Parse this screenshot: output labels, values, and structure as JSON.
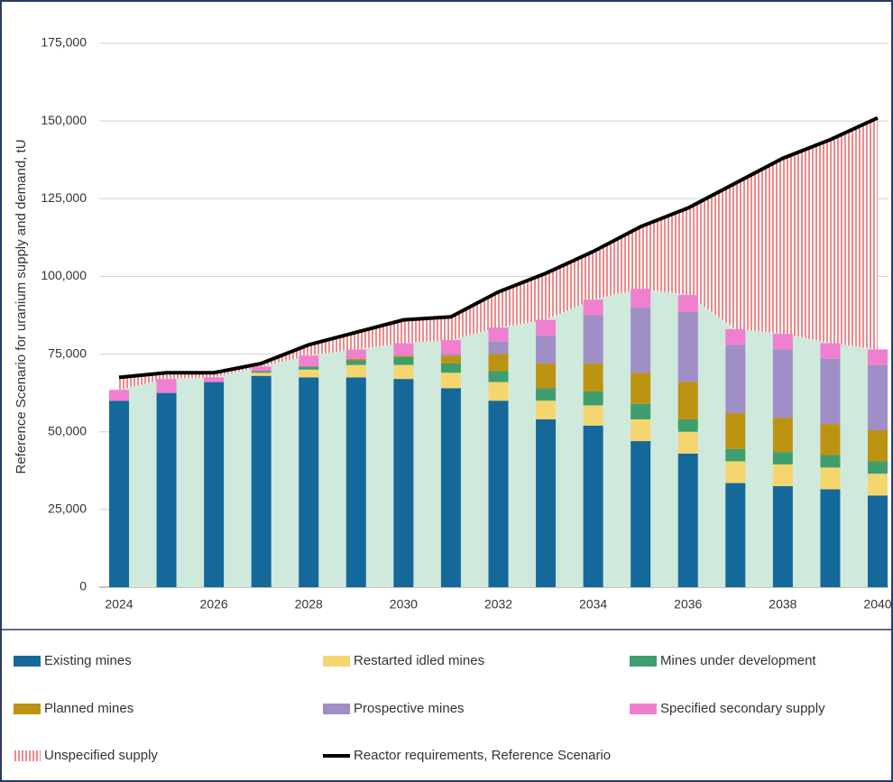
{
  "chart_data": {
    "type": "bar",
    "stacked": true,
    "y_label": "Reference Scenario for uranium supply and demand, tU",
    "categories": [
      "2024",
      null,
      "2026",
      null,
      "2028",
      null,
      "2030",
      null,
      "2032",
      null,
      "2034",
      null,
      "2036",
      null,
      "2038",
      null,
      "2040"
    ],
    "ylim": [
      0,
      175000
    ],
    "yticks": [
      0,
      {
        "value": 25000,
        "label": "25,000"
      },
      {
        "value": 50000,
        "label": "50,000"
      },
      {
        "value": 75000,
        "label": "75,000"
      },
      {
        "value": 100000,
        "label": "100,000"
      },
      {
        "value": 125000,
        "label": "125,000"
      },
      {
        "value": 150000,
        "label": "150,000"
      },
      {
        "value": 175000,
        "label": "175,000"
      }
    ],
    "grid": true,
    "legend": "bottom",
    "identified_supply_band_color": "#cfe9dd",
    "series": [
      {
        "name": "Existing mines",
        "color": "#15689a",
        "values": [
          60000,
          62500,
          66000,
          68000,
          67500,
          67500,
          67000,
          64000,
          60000,
          54000,
          52000,
          47000,
          43000,
          33500,
          32500,
          31500,
          29500
        ]
      },
      {
        "name": "Restarted idled mines",
        "color": "#f5d66e",
        "values": [
          0,
          0,
          0,
          1000,
          2500,
          4000,
          4500,
          5000,
          6000,
          6000,
          6500,
          7000,
          7000,
          7000,
          7000,
          7000,
          7000
        ]
      },
      {
        "name": "Mines under development",
        "color": "#3f9e6e",
        "values": [
          0,
          0,
          0,
          500,
          1000,
          1500,
          2500,
          3000,
          3500,
          4000,
          4500,
          5000,
          4000,
          4000,
          4000,
          4000,
          4000
        ]
      },
      {
        "name": "Planned mines",
        "color": "#bd9312",
        "values": [
          0,
          0,
          0,
          0,
          0,
          500,
          500,
          2500,
          5500,
          8000,
          9000,
          10000,
          12000,
          11500,
          11000,
          10000,
          10000
        ]
      },
      {
        "name": "Prospective mines",
        "color": "#a08ec6",
        "values": [
          0,
          0,
          0,
          0,
          0,
          0,
          0,
          500,
          4000,
          9000,
          15500,
          21000,
          22500,
          22000,
          22000,
          21000,
          21000
        ]
      },
      {
        "name": "Specified secondary supply",
        "color": "#f07fcf",
        "values": [
          3500,
          4500,
          1500,
          1500,
          3500,
          3000,
          4000,
          4500,
          4500,
          5000,
          5000,
          6000,
          5500,
          5000,
          5000,
          5000,
          5000
        ]
      },
      {
        "name": "Unspecified supply",
        "color": "#f08a8a",
        "pattern": "hatched",
        "values": [
          4000,
          2000,
          1500,
          1000,
          3500,
          5500,
          7500,
          7500,
          11500,
          15000,
          15500,
          20000,
          28000,
          47000,
          56500,
          65500,
          74500
        ]
      },
      {
        "name": "Reactor requirements, Reference Scenario",
        "color": "#000000",
        "type": "line",
        "values": [
          67500,
          69000,
          69000,
          72000,
          78000,
          82000,
          86000,
          87000,
          95000,
          101000,
          108000,
          116000,
          122000,
          130000,
          138000,
          144000,
          151000
        ]
      }
    ]
  }
}
